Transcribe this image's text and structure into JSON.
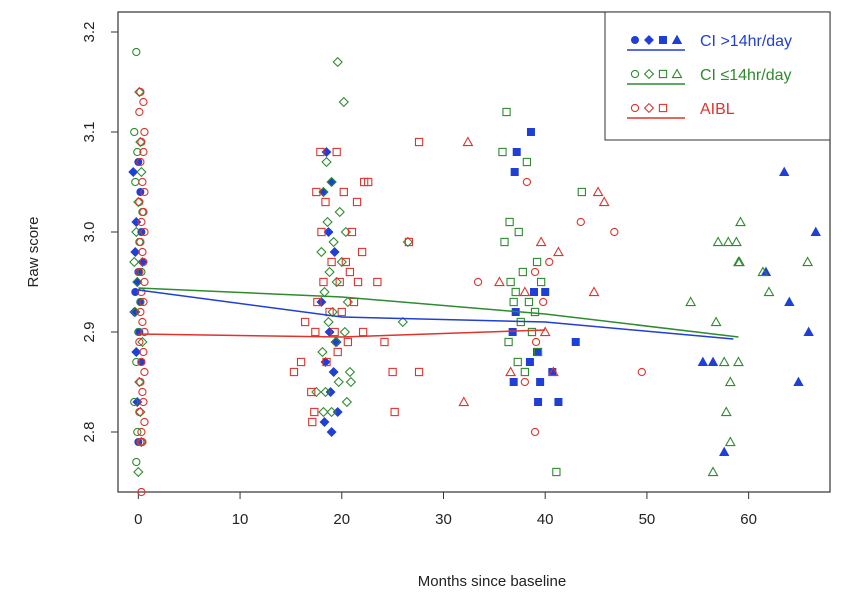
{
  "chart_data": {
    "type": "scatter",
    "xlabel": "Months since baseline",
    "ylabel": "Raw score",
    "xlim": [
      -2,
      68
    ],
    "ylim": [
      2.74,
      3.22
    ],
    "xticks": [
      0,
      10,
      20,
      30,
      40,
      50,
      60
    ],
    "yticks": [
      2.8,
      2.9,
      3.0,
      3.1,
      3.2
    ],
    "grid": false,
    "legend_position": "top-right",
    "series": [
      {
        "name": "CI >14hr/day",
        "color": "#1f3fd6",
        "marker": "filled (circle, diamond, square, triangle)",
        "points": [
          [
            0.0,
            3.07
          ],
          [
            -0.5,
            3.06
          ],
          [
            0.2,
            3.04
          ],
          [
            -0.2,
            3.01
          ],
          [
            0.3,
            3.0
          ],
          [
            -0.3,
            2.98
          ],
          [
            0.0,
            2.96
          ],
          [
            -0.1,
            2.95
          ],
          [
            0.2,
            2.93
          ],
          [
            -0.4,
            2.92
          ],
          [
            0.1,
            2.9
          ],
          [
            -0.2,
            2.88
          ],
          [
            0.3,
            2.87
          ],
          [
            -0.1,
            2.83
          ],
          [
            0.0,
            2.79
          ],
          [
            0.4,
            2.97
          ],
          [
            -0.3,
            2.94
          ],
          [
            18.5,
            3.08
          ],
          [
            19.0,
            3.05
          ],
          [
            18.2,
            3.04
          ],
          [
            18.7,
            3.0
          ],
          [
            19.3,
            2.98
          ],
          [
            18.0,
            2.93
          ],
          [
            18.8,
            2.9
          ],
          [
            19.5,
            2.89
          ],
          [
            18.4,
            2.87
          ],
          [
            19.2,
            2.86
          ],
          [
            18.9,
            2.84
          ],
          [
            19.6,
            2.82
          ],
          [
            18.3,
            2.81
          ],
          [
            19.0,
            2.8
          ],
          [
            38.6,
            3.1
          ],
          [
            37.2,
            3.08
          ],
          [
            37.0,
            3.06
          ],
          [
            38.9,
            2.94
          ],
          [
            40.0,
            2.94
          ],
          [
            37.1,
            2.92
          ],
          [
            36.8,
            2.9
          ],
          [
            39.2,
            2.88
          ],
          [
            38.5,
            2.87
          ],
          [
            40.7,
            2.86
          ],
          [
            36.9,
            2.85
          ],
          [
            39.5,
            2.85
          ],
          [
            39.3,
            2.83
          ],
          [
            41.3,
            2.83
          ],
          [
            43.0,
            2.89
          ],
          [
            63.5,
            3.06
          ],
          [
            66.6,
            3.0
          ],
          [
            61.7,
            2.96
          ],
          [
            64.0,
            2.93
          ],
          [
            65.9,
            2.9
          ],
          [
            55.5,
            2.87
          ],
          [
            56.5,
            2.87
          ],
          [
            64.9,
            2.85
          ],
          [
            57.6,
            2.78
          ]
        ]
      },
      {
        "name": "CI ≤14hr/day",
        "color": "#2e8b2e",
        "marker": "open (circle, diamond, square, triangle)",
        "points": [
          [
            -0.2,
            3.18
          ],
          [
            0.1,
            3.14
          ],
          [
            -0.4,
            3.1
          ],
          [
            0.2,
            3.09
          ],
          [
            -0.1,
            3.08
          ],
          [
            0.3,
            3.06
          ],
          [
            -0.3,
            3.05
          ],
          [
            0.0,
            3.03
          ],
          [
            0.4,
            3.02
          ],
          [
            -0.2,
            3.0
          ],
          [
            0.1,
            2.99
          ],
          [
            -0.4,
            2.97
          ],
          [
            0.3,
            2.96
          ],
          [
            -0.1,
            2.95
          ],
          [
            0.2,
            2.93
          ],
          [
            -0.3,
            2.92
          ],
          [
            0.0,
            2.9
          ],
          [
            0.4,
            2.89
          ],
          [
            -0.2,
            2.87
          ],
          [
            0.1,
            2.85
          ],
          [
            -0.4,
            2.83
          ],
          [
            0.2,
            2.82
          ],
          [
            -0.1,
            2.8
          ],
          [
            0.3,
            2.79
          ],
          [
            -0.2,
            2.77
          ],
          [
            0.0,
            2.76
          ],
          [
            19.6,
            3.17
          ],
          [
            20.2,
            3.13
          ],
          [
            18.5,
            3.07
          ],
          [
            19.0,
            3.05
          ],
          [
            18.2,
            3.04
          ],
          [
            19.8,
            3.02
          ],
          [
            18.6,
            3.01
          ],
          [
            20.4,
            3.0
          ],
          [
            19.2,
            2.99
          ],
          [
            18.0,
            2.98
          ],
          [
            20.0,
            2.97
          ],
          [
            18.8,
            2.96
          ],
          [
            19.5,
            2.95
          ],
          [
            18.3,
            2.94
          ],
          [
            20.6,
            2.93
          ],
          [
            19.1,
            2.92
          ],
          [
            18.7,
            2.91
          ],
          [
            20.3,
            2.9
          ],
          [
            19.4,
            2.89
          ],
          [
            18.1,
            2.88
          ],
          [
            20.8,
            2.86
          ],
          [
            19.7,
            2.85
          ],
          [
            18.4,
            2.84
          ],
          [
            17.5,
            2.84
          ],
          [
            20.5,
            2.83
          ],
          [
            19.0,
            2.82
          ],
          [
            18.2,
            2.82
          ],
          [
            20.9,
            2.85
          ],
          [
            26.0,
            2.91
          ],
          [
            26.5,
            2.99
          ],
          [
            36.2,
            3.12
          ],
          [
            35.8,
            3.08
          ],
          [
            38.2,
            3.07
          ],
          [
            36.5,
            3.01
          ],
          [
            37.4,
            3.0
          ],
          [
            36.0,
            2.99
          ],
          [
            39.2,
            2.97
          ],
          [
            37.8,
            2.96
          ],
          [
            36.6,
            2.95
          ],
          [
            39.6,
            2.95
          ],
          [
            37.1,
            2.94
          ],
          [
            38.4,
            2.93
          ],
          [
            36.9,
            2.93
          ],
          [
            39.0,
            2.92
          ],
          [
            37.6,
            2.91
          ],
          [
            38.7,
            2.9
          ],
          [
            36.4,
            2.89
          ],
          [
            39.3,
            2.88
          ],
          [
            37.3,
            2.87
          ],
          [
            38.0,
            2.86
          ],
          [
            41.1,
            2.76
          ],
          [
            43.6,
            3.04
          ],
          [
            59.2,
            3.01
          ],
          [
            58.8,
            2.99
          ],
          [
            57.0,
            2.99
          ],
          [
            58.0,
            2.99
          ],
          [
            59.0,
            2.97
          ],
          [
            59.1,
            2.97
          ],
          [
            61.4,
            2.96
          ],
          [
            65.8,
            2.97
          ],
          [
            62.0,
            2.94
          ],
          [
            54.3,
            2.93
          ],
          [
            56.8,
            2.91
          ],
          [
            57.6,
            2.87
          ],
          [
            59.0,
            2.87
          ],
          [
            58.2,
            2.85
          ],
          [
            57.8,
            2.82
          ],
          [
            58.2,
            2.79
          ],
          [
            56.5,
            2.76
          ]
        ]
      },
      {
        "name": "AIBL",
        "color": "#e0332c",
        "marker": "open (circle, diamond, square, triangle)",
        "points": [
          [
            0.2,
            3.14
          ],
          [
            0.5,
            3.13
          ],
          [
            0.1,
            3.12
          ],
          [
            0.6,
            3.1
          ],
          [
            0.3,
            3.09
          ],
          [
            0.5,
            3.08
          ],
          [
            0.2,
            3.07
          ],
          [
            0.4,
            3.05
          ],
          [
            0.6,
            3.04
          ],
          [
            0.1,
            3.03
          ],
          [
            0.5,
            3.02
          ],
          [
            0.3,
            3.01
          ],
          [
            0.6,
            3.0
          ],
          [
            0.2,
            2.99
          ],
          [
            0.4,
            2.98
          ],
          [
            0.5,
            2.97
          ],
          [
            0.1,
            2.96
          ],
          [
            0.6,
            2.95
          ],
          [
            0.3,
            2.94
          ],
          [
            0.5,
            2.93
          ],
          [
            0.2,
            2.92
          ],
          [
            0.4,
            2.91
          ],
          [
            0.6,
            2.9
          ],
          [
            0.1,
            2.89
          ],
          [
            0.5,
            2.88
          ],
          [
            0.3,
            2.87
          ],
          [
            0.6,
            2.86
          ],
          [
            0.2,
            2.85
          ],
          [
            0.4,
            2.84
          ],
          [
            0.5,
            2.83
          ],
          [
            0.1,
            2.82
          ],
          [
            0.6,
            2.81
          ],
          [
            0.3,
            2.8
          ],
          [
            0.4,
            2.79
          ],
          [
            0.2,
            2.79
          ],
          [
            0.3,
            2.74
          ],
          [
            17.9,
            3.08
          ],
          [
            19.5,
            3.08
          ],
          [
            17.5,
            3.04
          ],
          [
            18.4,
            3.03
          ],
          [
            20.2,
            3.04
          ],
          [
            21.5,
            3.03
          ],
          [
            22.2,
            3.05
          ],
          [
            22.6,
            3.05
          ],
          [
            18.0,
            3.0
          ],
          [
            21.0,
            3.0
          ],
          [
            22.0,
            2.98
          ],
          [
            19.0,
            2.97
          ],
          [
            20.4,
            2.97
          ],
          [
            18.2,
            2.95
          ],
          [
            19.8,
            2.95
          ],
          [
            20.8,
            2.96
          ],
          [
            21.6,
            2.95
          ],
          [
            23.5,
            2.95
          ],
          [
            17.6,
            2.93
          ],
          [
            18.8,
            2.92
          ],
          [
            20.0,
            2.92
          ],
          [
            21.2,
            2.93
          ],
          [
            16.4,
            2.91
          ],
          [
            17.4,
            2.9
          ],
          [
            19.3,
            2.9
          ],
          [
            20.6,
            2.89
          ],
          [
            22.1,
            2.9
          ],
          [
            24.2,
            2.89
          ],
          [
            19.6,
            2.88
          ],
          [
            18.5,
            2.87
          ],
          [
            16.0,
            2.87
          ],
          [
            15.3,
            2.86
          ],
          [
            25.0,
            2.86
          ],
          [
            27.6,
            2.86
          ],
          [
            17.0,
            2.84
          ],
          [
            17.3,
            2.82
          ],
          [
            25.2,
            2.82
          ],
          [
            17.1,
            2.81
          ],
          [
            26.6,
            2.99
          ],
          [
            27.6,
            3.09
          ],
          [
            32.4,
            3.09
          ],
          [
            33.4,
            2.95
          ],
          [
            35.5,
            2.95
          ],
          [
            38.2,
            3.05
          ],
          [
            39.6,
            2.99
          ],
          [
            39.0,
            2.96
          ],
          [
            38.0,
            2.94
          ],
          [
            40.4,
            2.97
          ],
          [
            41.3,
            2.98
          ],
          [
            39.8,
            2.93
          ],
          [
            40.0,
            2.9
          ],
          [
            39.1,
            2.89
          ],
          [
            40.8,
            2.86
          ],
          [
            39.0,
            2.8
          ],
          [
            36.6,
            2.86
          ],
          [
            38.0,
            2.85
          ],
          [
            32.0,
            2.83
          ],
          [
            43.5,
            3.01
          ],
          [
            45.8,
            3.03
          ],
          [
            46.8,
            3.0
          ],
          [
            44.8,
            2.94
          ],
          [
            49.5,
            2.86
          ],
          [
            45.2,
            3.04
          ]
        ]
      }
    ],
    "trend_lines": [
      {
        "name": "CI >14hr/day",
        "color": "#1f3fd6",
        "points": [
          [
            0,
            2.942
          ],
          [
            20,
            2.915
          ],
          [
            40,
            2.91
          ],
          [
            58.5,
            2.893
          ]
        ]
      },
      {
        "name": "CI ≤14hr/day",
        "color": "#2e8b2e",
        "points": [
          [
            0,
            2.944
          ],
          [
            20,
            2.935
          ],
          [
            40,
            2.918
          ],
          [
            59,
            2.895
          ]
        ]
      },
      {
        "name": "AIBL",
        "color": "#e0332c",
        "points": [
          [
            0,
            2.898
          ],
          [
            20,
            2.895
          ],
          [
            40,
            2.902
          ]
        ]
      }
    ]
  }
}
